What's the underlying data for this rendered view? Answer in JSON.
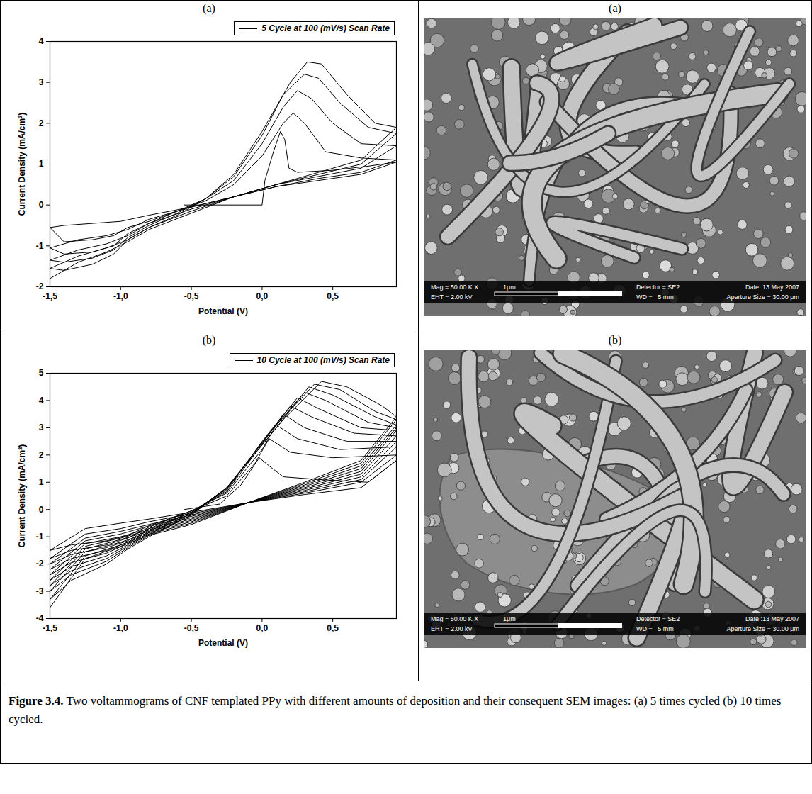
{
  "chart_data": [
    {
      "type": "line",
      "xlabel": "Potential (V)",
      "ylabel": "Current Density (mA/cm²)",
      "xlim": [
        -1.5,
        0.95
      ],
      "xticks": [
        {
          "value": -1.5,
          "label": "-1,5"
        },
        {
          "value": -1.0,
          "label": "-1,0"
        },
        {
          "value": -0.5,
          "label": "-0,5"
        },
        {
          "value": 0.0,
          "label": "0,0"
        },
        {
          "value": 0.5,
          "label": "0,5"
        }
      ],
      "ylim": [
        -2,
        4
      ],
      "yticks": [
        -2,
        -1,
        0,
        1,
        2,
        3,
        4
      ],
      "grid": false,
      "legend": "top-right",
      "series": [
        {
          "name": "5 Cycle at 100 (mV/s) Scan Rate",
          "color": "#000000",
          "line_style": "solid",
          "x": [
            -0.55,
            0.0,
            0.02,
            0.08,
            0.13,
            0.16,
            0.19,
            0.25,
            0.5,
            0.75,
            0.95,
            0.7,
            0.4,
            0.1,
            -0.2,
            -0.5,
            -0.8,
            -1.0,
            -1.2,
            -1.4,
            -1.5,
            -1.4,
            -1.2,
            -1.05,
            -0.95,
            -0.8,
            -0.6,
            -0.4,
            -0.2,
            0.0,
            0.15,
            0.22,
            0.3,
            0.45,
            0.7,
            0.95,
            0.7,
            0.4,
            0.1,
            -0.2,
            -0.5,
            -0.8,
            -0.95,
            -1.1,
            -1.3,
            -1.5,
            -1.4,
            -1.2,
            -1.05,
            -0.95,
            -0.8,
            -0.6,
            -0.4,
            -0.2,
            0.0,
            0.15,
            0.25,
            0.35,
            0.5,
            0.7,
            0.95,
            0.7,
            0.4,
            0.1,
            -0.2,
            -0.5,
            -0.8,
            -0.95,
            -1.1,
            -1.3,
            -1.5,
            -1.4,
            -1.2,
            -1.05,
            -0.95,
            -0.8,
            -0.6,
            -0.4,
            -0.2,
            0.0,
            0.15,
            0.3,
            0.4,
            0.55,
            0.75,
            0.95,
            0.7,
            0.4,
            0.1,
            -0.2,
            -0.5,
            -0.8,
            -0.95,
            -1.1,
            -1.3,
            -1.5,
            -1.4,
            -1.2,
            -1.05,
            -0.95,
            -0.8,
            -0.6,
            -0.4,
            -0.2,
            0.0,
            0.2,
            0.32,
            0.42,
            0.6,
            0.8,
            0.95,
            0.7,
            0.4,
            0.1,
            -0.2,
            -0.5,
            -0.8,
            -0.95,
            -1.1,
            -1.3,
            -1.5
          ],
          "values": [
            0,
            0,
            0.6,
            1.3,
            1.8,
            1.6,
            0.9,
            0.8,
            0.85,
            0.95,
            1.05,
            0.75,
            0.6,
            0.45,
            0.2,
            -0.05,
            -0.25,
            -0.4,
            -0.45,
            -0.5,
            -0.55,
            -0.9,
            -0.85,
            -0.75,
            -0.55,
            -0.4,
            -0.15,
            0.1,
            0.5,
            1.2,
            2.0,
            2.25,
            2.0,
            1.3,
            1.15,
            1.1,
            0.8,
            0.65,
            0.45,
            0.2,
            -0.05,
            -0.35,
            -0.6,
            -0.75,
            -0.85,
            -1.05,
            -1.2,
            -1.15,
            -1.0,
            -0.7,
            -0.45,
            -0.15,
            0.15,
            0.6,
            1.5,
            2.4,
            2.8,
            2.6,
            2.0,
            1.5,
            1.45,
            0.9,
            0.7,
            0.5,
            0.2,
            -0.1,
            -0.45,
            -0.75,
            -0.95,
            -1.1,
            -1.35,
            -1.4,
            -1.3,
            -1.1,
            -0.8,
            -0.5,
            -0.2,
            0.15,
            0.7,
            1.7,
            2.7,
            3.2,
            3.1,
            2.5,
            1.9,
            1.75,
            1.0,
            0.75,
            0.5,
            0.2,
            -0.15,
            -0.55,
            -0.85,
            -1.05,
            -1.25,
            -1.55,
            -1.6,
            -1.45,
            -1.2,
            -0.85,
            -0.55,
            -0.25,
            0.15,
            0.75,
            1.8,
            3.0,
            3.5,
            3.45,
            2.7,
            2.0,
            1.9,
            1.1,
            0.8,
            0.5,
            0.2,
            -0.2,
            -0.6,
            -0.9,
            -1.15,
            -1.4,
            -1.8
          ]
        }
      ]
    },
    {
      "type": "line",
      "xlabel": "Potential (V)",
      "ylabel": "Current Density (mA/cm²)",
      "xlim": [
        -1.5,
        0.95
      ],
      "xticks": [
        {
          "value": -1.5,
          "label": "-1,5"
        },
        {
          "value": -1.0,
          "label": "-1,0"
        },
        {
          "value": -0.5,
          "label": "-0,5"
        },
        {
          "value": 0.0,
          "label": "0,0"
        },
        {
          "value": 0.5,
          "label": "0,5"
        }
      ],
      "ylim": [
        -4,
        5
      ],
      "yticks": [
        -4,
        -3,
        -2,
        -1,
        0,
        1,
        2,
        3,
        4,
        5
      ],
      "grid": false,
      "legend": "top-right",
      "series": [
        {
          "name": "10 Cycle at 100 (mV/s) Scan Rate",
          "color": "#000000",
          "line_style": "solid",
          "x": [
            -0.55,
            -0.3,
            -0.15,
            -0.02,
            0.05,
            0.15,
            0.4,
            0.75,
            0.95,
            0.7,
            0.3,
            -0.1,
            -0.5,
            -0.8,
            -1.0,
            -1.25,
            -1.5,
            -1.35,
            -1.1,
            -0.95,
            -0.8,
            -0.5,
            -0.25,
            -0.05,
            0.05,
            0.2,
            0.5,
            0.95,
            0.7,
            0.3,
            -0.1,
            -0.5,
            -0.8,
            -1.0,
            -1.25,
            -1.5,
            -1.35,
            -1.1,
            -0.95,
            -0.8,
            -0.5,
            -0.25,
            0.0,
            0.1,
            0.25,
            0.55,
            0.95,
            0.7,
            0.3,
            -0.1,
            -0.5,
            -0.8,
            -1.0,
            -1.25,
            -1.5,
            -1.35,
            -1.1,
            -0.95,
            -0.8,
            -0.5,
            -0.25,
            0.0,
            0.15,
            0.3,
            0.6,
            0.95,
            0.7,
            0.3,
            -0.1,
            -0.5,
            -0.8,
            -1.0,
            -1.25,
            -1.5,
            -1.35,
            -1.1,
            -0.95,
            -0.8,
            -0.5,
            -0.25,
            0.0,
            0.2,
            0.35,
            0.65,
            0.95,
            0.7,
            0.3,
            -0.1,
            -0.5,
            -0.8,
            -1.0,
            -1.25,
            -1.5,
            -1.35,
            -1.1,
            -0.95,
            -0.8,
            -0.5,
            -0.25,
            0.05,
            0.25,
            0.4,
            0.7,
            0.95,
            0.7,
            0.3,
            -0.1,
            -0.5,
            -0.8,
            -1.0,
            -1.25,
            -1.5,
            -1.35,
            -1.1,
            -0.95,
            -0.8,
            -0.5,
            -0.25,
            0.05,
            0.3,
            0.45,
            0.75,
            0.95,
            0.7,
            0.3,
            -0.1,
            -0.5,
            -0.8,
            -1.0,
            -1.25,
            -1.5,
            -1.35,
            -1.1,
            -0.95,
            -0.8,
            -0.5,
            -0.25,
            0.1,
            0.33,
            0.5,
            0.8,
            0.95,
            0.7,
            0.3,
            -0.1,
            -0.5,
            -0.8,
            -1.0,
            -1.25,
            -1.5,
            -1.35,
            -1.1,
            -0.95,
            -0.8,
            -0.5,
            -0.25,
            0.1,
            0.37,
            0.55,
            0.8,
            0.95,
            0.7,
            0.3,
            -0.1,
            -0.5,
            -0.8,
            -1.0,
            -1.25,
            -1.5,
            -1.35,
            -1.1,
            -0.95,
            -0.8,
            -0.5,
            -0.25,
            0.15,
            0.42,
            0.6,
            0.85,
            0.95,
            0.7,
            0.3,
            -0.1,
            -0.5,
            -0.8,
            -1.0,
            -1.25,
            -1.5
          ],
          "values": [
            0,
            0.2,
            0.9,
            1.9,
            1.6,
            1.2,
            1.1,
            1.0,
            1.8,
            0.8,
            0.55,
            0.25,
            -0.1,
            -0.35,
            -0.5,
            -0.7,
            -1.5,
            -1.3,
            -1.15,
            -0.95,
            -0.6,
            -0.05,
            0.5,
            1.7,
            2.6,
            2.1,
            1.9,
            2.0,
            1.0,
            0.6,
            0.25,
            -0.15,
            -0.45,
            -0.7,
            -0.9,
            -1.8,
            -1.5,
            -1.3,
            -1.05,
            -0.65,
            -0.05,
            0.6,
            2.2,
            3.1,
            2.6,
            2.2,
            2.3,
            1.1,
            0.65,
            0.25,
            -0.2,
            -0.55,
            -0.8,
            -1.05,
            -2.0,
            -1.65,
            -1.4,
            -1.15,
            -0.7,
            -0.1,
            0.65,
            2.4,
            3.5,
            3.0,
            2.5,
            2.5,
            1.2,
            0.7,
            0.25,
            -0.25,
            -0.6,
            -0.9,
            -1.15,
            -2.2,
            -1.8,
            -1.5,
            -1.2,
            -0.75,
            -0.1,
            0.7,
            2.5,
            3.8,
            3.4,
            2.8,
            2.7,
            1.3,
            0.75,
            0.25,
            -0.3,
            -0.7,
            -1.0,
            -1.25,
            -2.4,
            -1.95,
            -1.6,
            -1.25,
            -0.8,
            -0.1,
            0.75,
            2.8,
            4.1,
            3.7,
            3.0,
            2.9,
            1.4,
            0.8,
            0.25,
            -0.35,
            -0.75,
            -1.05,
            -1.35,
            -2.6,
            -2.1,
            -1.7,
            -1.3,
            -0.85,
            -0.15,
            0.75,
            2.8,
            4.3,
            4.0,
            3.2,
            3.0,
            1.5,
            0.85,
            0.25,
            -0.4,
            -0.8,
            -1.1,
            -1.45,
            -2.8,
            -2.25,
            -1.8,
            -1.35,
            -0.9,
            -0.15,
            0.8,
            3.0,
            4.5,
            4.2,
            3.4,
            3.1,
            1.6,
            0.9,
            0.25,
            -0.45,
            -0.85,
            -1.2,
            -1.55,
            -3.0,
            -2.4,
            -1.9,
            -1.4,
            -0.95,
            -0.2,
            0.8,
            3.1,
            4.6,
            4.4,
            3.6,
            3.3,
            1.7,
            0.95,
            0.25,
            -0.5,
            -0.9,
            -1.3,
            -1.7,
            -3.3,
            -2.6,
            -2.0,
            -1.45,
            -1.0,
            -0.2,
            0.8,
            3.3,
            4.7,
            4.5,
            3.8,
            3.4,
            1.8,
            1.0,
            0.25,
            -0.55,
            -0.95,
            -1.35,
            -1.8,
            -3.6
          ]
        }
      ]
    }
  ],
  "figure": {
    "rows": [
      {
        "chart_label": "(a)",
        "image_label": "(a)",
        "image": {
          "mag": "Mag = 50.00 K X",
          "eht": "EHT = 2.00 kV",
          "scale_bar": "1μm",
          "detector": "Detector = SE2",
          "date": "Date :13 May 2007",
          "wd": "WD =   5 mm",
          "aperture": "Aperture Size = 30.00 μm"
        }
      },
      {
        "chart_label": "(b)",
        "image_label": "(b)",
        "image": {
          "mag": "Mag = 50.00 K X",
          "eht": "EHT = 2.00 kV",
          "scale_bar": "1μm",
          "detector": "Detector = SE2",
          "date": "Date :13 May 2007",
          "wd": "WD =   5 mm",
          "aperture": "Aperture Size = 30.00 μm"
        }
      }
    ],
    "caption": {
      "number": "Figure 3.4.",
      "text": "Two voltammograms of CNF templated PPy with different amounts of deposition and their consequent SEM images: (a) 5 times cycled (b) 10 times cycled."
    }
  }
}
